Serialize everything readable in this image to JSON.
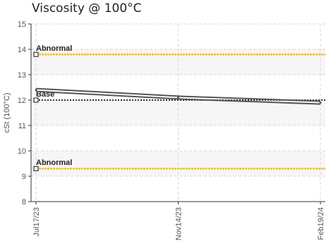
{
  "chart_data": {
    "type": "line",
    "title": "Viscosity @ 100°C",
    "ylabel": "cSt (100°C)",
    "xlabel": "",
    "ylim": [
      8,
      15
    ],
    "yticks": [
      "8",
      "9",
      "10",
      "11",
      "12",
      "13",
      "14",
      "15"
    ],
    "x_ticks": [
      "Jul17/23",
      "Nov14/23",
      "Feb19/24"
    ],
    "grid": true,
    "bands": [
      [
        9,
        10
      ],
      [
        11,
        12
      ],
      [
        13,
        14
      ]
    ],
    "reference_lines": [
      {
        "label": "Abnormal",
        "value": 13.8,
        "color": "#f2c200"
      },
      {
        "label": "Base",
        "value": 12.0,
        "color": "#333333"
      },
      {
        "label": "Abnormal",
        "value": 9.3,
        "color": "#f2c200"
      }
    ],
    "series": [
      {
        "x": [
          "Jul17/23",
          "Nov14/23",
          "Feb19/24"
        ],
        "values": [
          12.4,
          12.1,
          11.9
        ],
        "color": "#555555"
      }
    ]
  }
}
